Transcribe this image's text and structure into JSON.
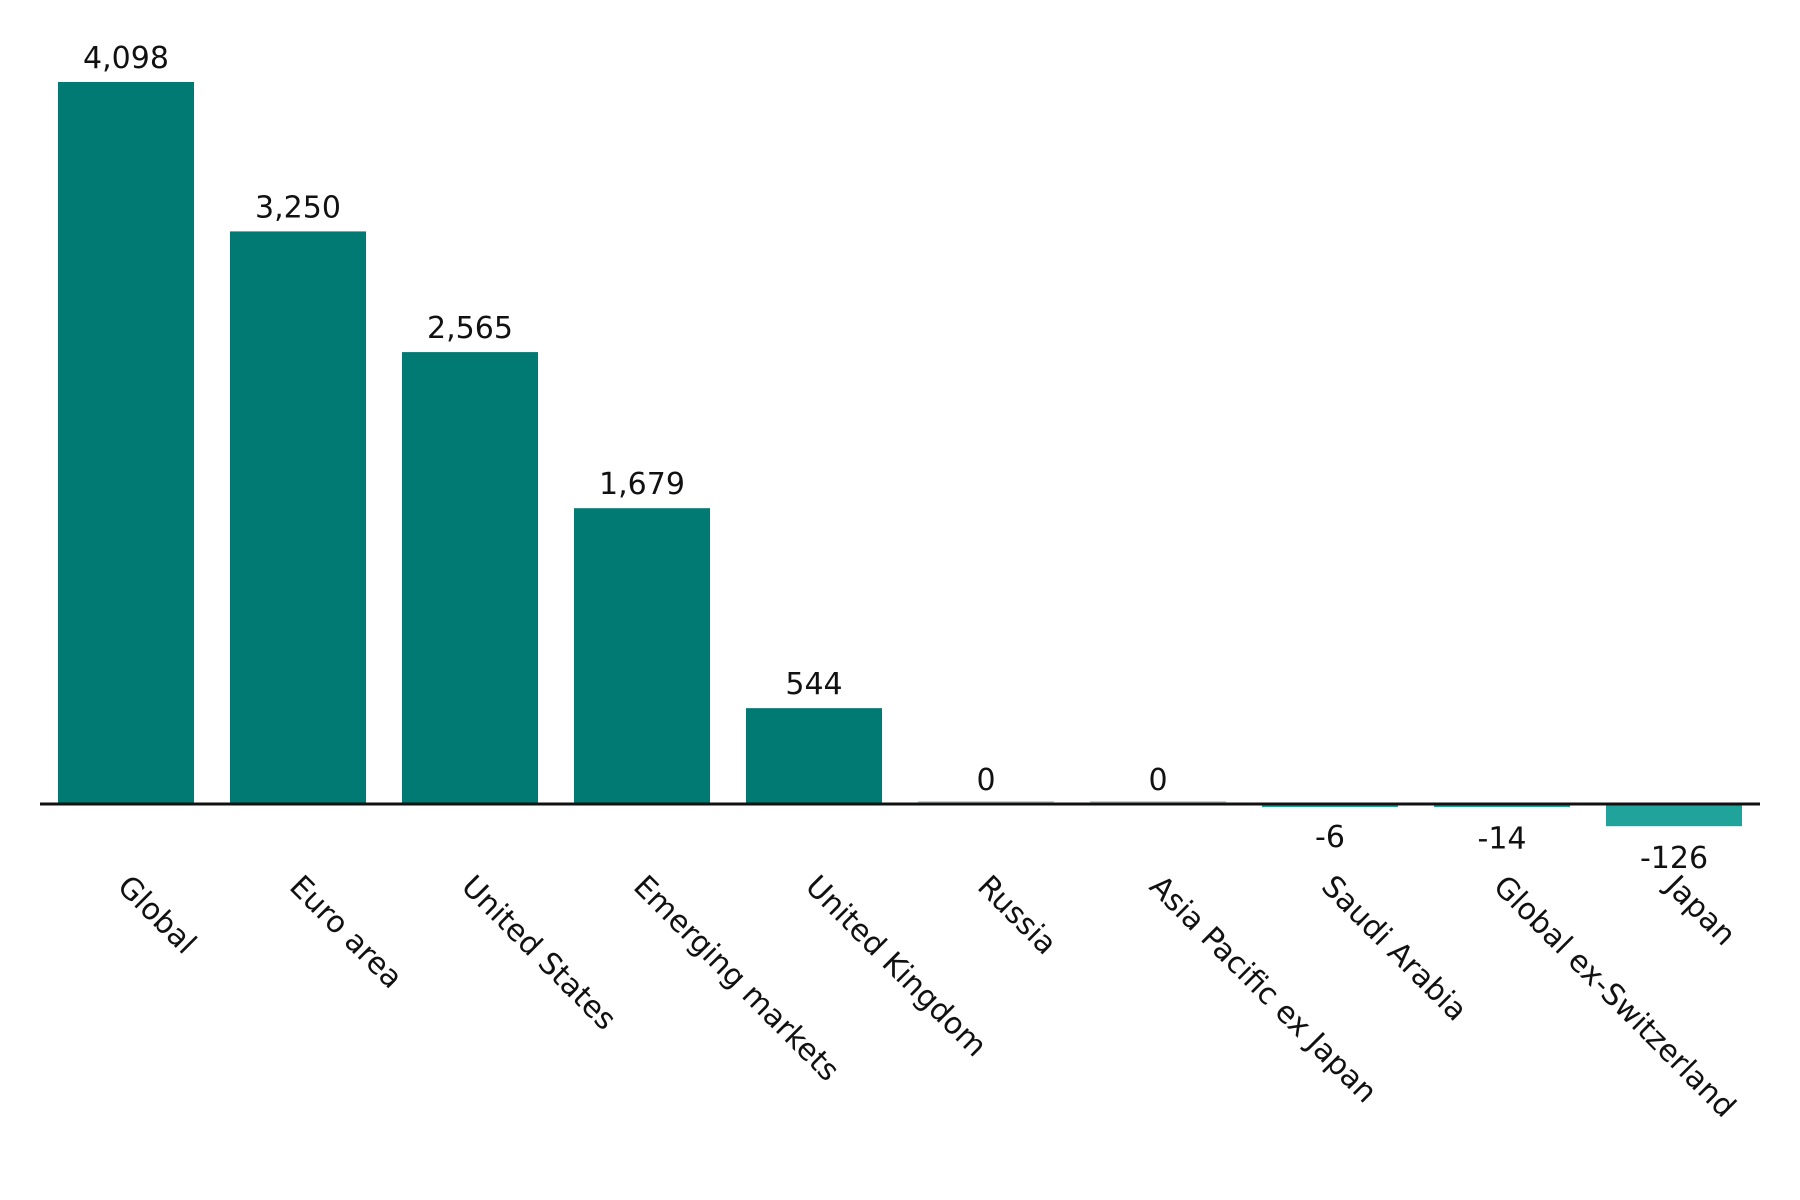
{
  "chart_data": {
    "type": "bar",
    "title": "",
    "xlabel": "",
    "ylabel": "",
    "categories": [
      "Global",
      "Euro area",
      "United States",
      "Emerging markets",
      "United Kingdom",
      "Russia",
      "Asia Pacific ex Japan",
      "Saudi Arabia",
      "Global ex-Switzerland",
      "Japan"
    ],
    "values": [
      4098,
      3250,
      2565,
      1679,
      544,
      0,
      0,
      -6,
      -14,
      -126
    ],
    "value_labels": [
      "4,098",
      "3,250",
      "2,565",
      "1,679",
      "544",
      "0",
      "0",
      "-6",
      "-14",
      "-126"
    ],
    "ylim": [
      -126,
      4098
    ],
    "grid": false,
    "legend": "none",
    "colors": {
      "positive": "#007a72",
      "negative": "#1fa39b",
      "zero": "#c8d0d0",
      "axis": "#111111"
    }
  }
}
